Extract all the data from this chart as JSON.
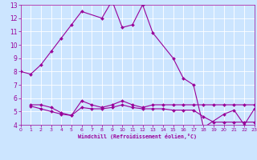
{
  "xlabel": "Windchill (Refroidissement éolien,°C)",
  "bg_color": "#cce5ff",
  "line_color": "#990099",
  "xlim": [
    0,
    23
  ],
  "ylim": [
    4,
    13
  ],
  "yticks": [
    4,
    5,
    6,
    7,
    8,
    9,
    10,
    11,
    12,
    13
  ],
  "xticks": [
    0,
    1,
    2,
    3,
    4,
    5,
    6,
    7,
    8,
    9,
    10,
    11,
    12,
    13,
    14,
    15,
    16,
    17,
    18,
    19,
    20,
    21,
    22,
    23
  ],
  "line1_x": [
    0,
    1,
    2,
    3,
    4,
    5,
    6,
    8,
    9,
    10,
    11,
    12,
    13,
    15,
    16,
    17,
    18,
    20,
    21,
    22,
    23
  ],
  "line1_y": [
    8.0,
    7.8,
    8.5,
    9.5,
    10.5,
    11.5,
    12.5,
    12.0,
    13.3,
    11.3,
    11.5,
    13.0,
    10.9,
    9.0,
    7.5,
    7.0,
    3.8,
    4.8,
    5.1,
    4.0,
    5.2
  ],
  "line2_x": [
    1,
    2,
    3,
    4,
    5,
    6,
    7,
    8,
    9,
    10,
    11,
    12,
    13,
    14,
    15,
    16,
    17,
    18,
    19,
    20,
    21,
    22,
    23
  ],
  "line2_y": [
    5.5,
    5.5,
    5.3,
    4.9,
    4.7,
    5.8,
    5.5,
    5.3,
    5.5,
    5.8,
    5.5,
    5.3,
    5.5,
    5.5,
    5.5,
    5.5,
    5.5,
    5.5,
    5.5,
    5.5,
    5.5,
    5.5,
    5.5
  ],
  "line3_x": [
    1,
    2,
    3,
    4,
    5,
    6,
    7,
    8,
    9,
    10,
    11,
    12,
    13,
    14,
    15,
    16,
    17,
    18,
    19,
    20,
    21,
    22,
    23
  ],
  "line3_y": [
    5.4,
    5.2,
    5.0,
    4.8,
    4.7,
    5.3,
    5.2,
    5.2,
    5.3,
    5.5,
    5.3,
    5.2,
    5.2,
    5.2,
    5.1,
    5.1,
    5.1,
    4.6,
    4.2,
    4.2,
    4.2,
    4.2,
    4.2
  ]
}
